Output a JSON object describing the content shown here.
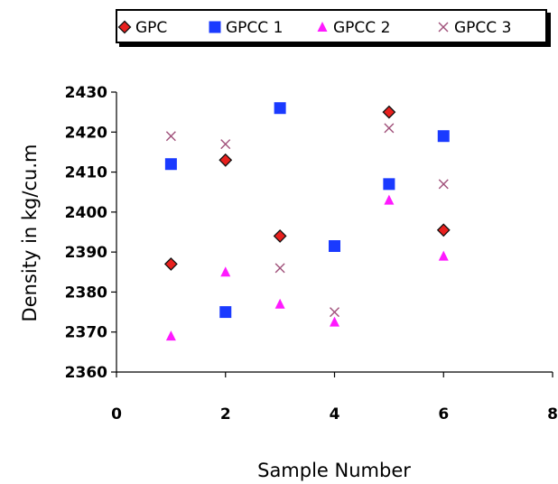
{
  "chart_data": {
    "type": "scatter",
    "title": "",
    "xlabel": "Sample Number",
    "ylabel": "Density in kg/cu.m",
    "xlim": [
      0,
      8
    ],
    "ylim": [
      2360,
      2430
    ],
    "xticks": [
      0,
      2,
      4,
      6,
      8
    ],
    "yticks": [
      2360,
      2370,
      2380,
      2390,
      2400,
      2410,
      2420,
      2430
    ],
    "grid": false,
    "legend_position": "top",
    "series": [
      {
        "name": "GPC",
        "marker": "diamond",
        "color": "#e8201e",
        "stroke": "#111111",
        "x": [
          1,
          2,
          3,
          4,
          5,
          6
        ],
        "y": [
          2387,
          2413,
          2394,
          null,
          2425,
          2395.5
        ]
      },
      {
        "name": "GPCC 1",
        "marker": "square",
        "color": "#1a3aff",
        "x": [
          1,
          2,
          3,
          4,
          5,
          6
        ],
        "y": [
          2412,
          2375,
          2426,
          2391.5,
          2407,
          2419
        ]
      },
      {
        "name": "GPCC 2",
        "marker": "triangle",
        "color": "#ff1aff",
        "x": [
          1,
          2,
          3,
          4,
          5,
          6
        ],
        "y": [
          2369,
          2385,
          2377,
          2372.5,
          2403,
          2389
        ]
      },
      {
        "name": "GPCC 3",
        "marker": "x",
        "color": "#a0507a",
        "x": [
          1,
          2,
          3,
          4,
          5,
          6
        ],
        "y": [
          2419,
          2417,
          2386,
          2375,
          2421,
          2407
        ]
      }
    ]
  }
}
